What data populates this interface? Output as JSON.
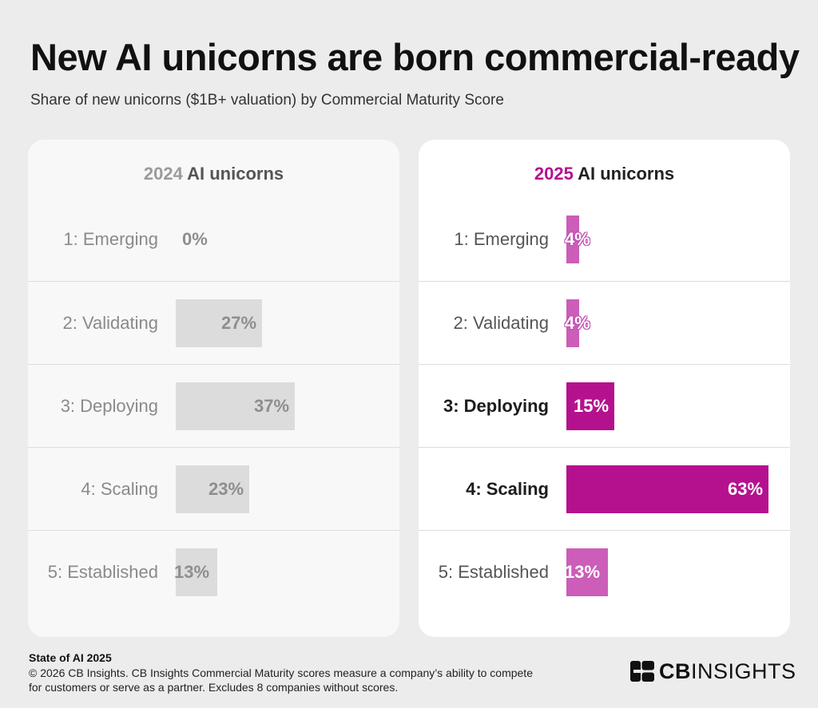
{
  "title": "New AI unicorns are born commercial-ready",
  "subtitle": "Share of new unicorns ($1B+ valuation) by Commercial Maturity Score",
  "colors": {
    "bar_2024": "#dcdcdc",
    "bar_2025_highlight": "#b5118f",
    "bar_2025_light": "#cc5db8",
    "year_2025": "#b5118f"
  },
  "chart_data": [
    {
      "type": "bar",
      "orientation": "horizontal",
      "title": "2024 AI unicorns",
      "title_year": "2024",
      "title_rest": " AI unicorns",
      "categories": [
        "1: Emerging",
        "2: Validating",
        "3: Deploying",
        "4: Scaling",
        "5: Established"
      ],
      "values": [
        0,
        27,
        37,
        23,
        13
      ],
      "value_labels": [
        "0%",
        "27%",
        "37%",
        "23%",
        "13%"
      ],
      "unit": "%",
      "xlim": [
        0,
        63
      ],
      "grid": false
    },
    {
      "type": "bar",
      "orientation": "horizontal",
      "title": "2025 AI unicorns",
      "title_year": "2025",
      "title_rest": " AI unicorns",
      "categories": [
        "1: Emerging",
        "2: Validating",
        "3: Deploying",
        "4: Scaling",
        "5: Established"
      ],
      "values": [
        4,
        4,
        15,
        63,
        13
      ],
      "value_labels": [
        "4%",
        "4%",
        "15%",
        "63%",
        "13%"
      ],
      "highlighted": [
        "3: Deploying",
        "4: Scaling"
      ],
      "unit": "%",
      "xlim": [
        0,
        63
      ],
      "grid": false
    }
  ],
  "footer": {
    "source": "State of AI 2025",
    "note_line1": "© 2026 CB Insights. CB Insights Commercial Maturity scores measure a company’s ability to compete",
    "note_line2": "for customers or serve as a partner. Excludes 8 companies without scores."
  },
  "logo": {
    "icon": "cb-insights-logo-mark",
    "text_bold": "CB",
    "text_rest": "INSIGHTS"
  }
}
